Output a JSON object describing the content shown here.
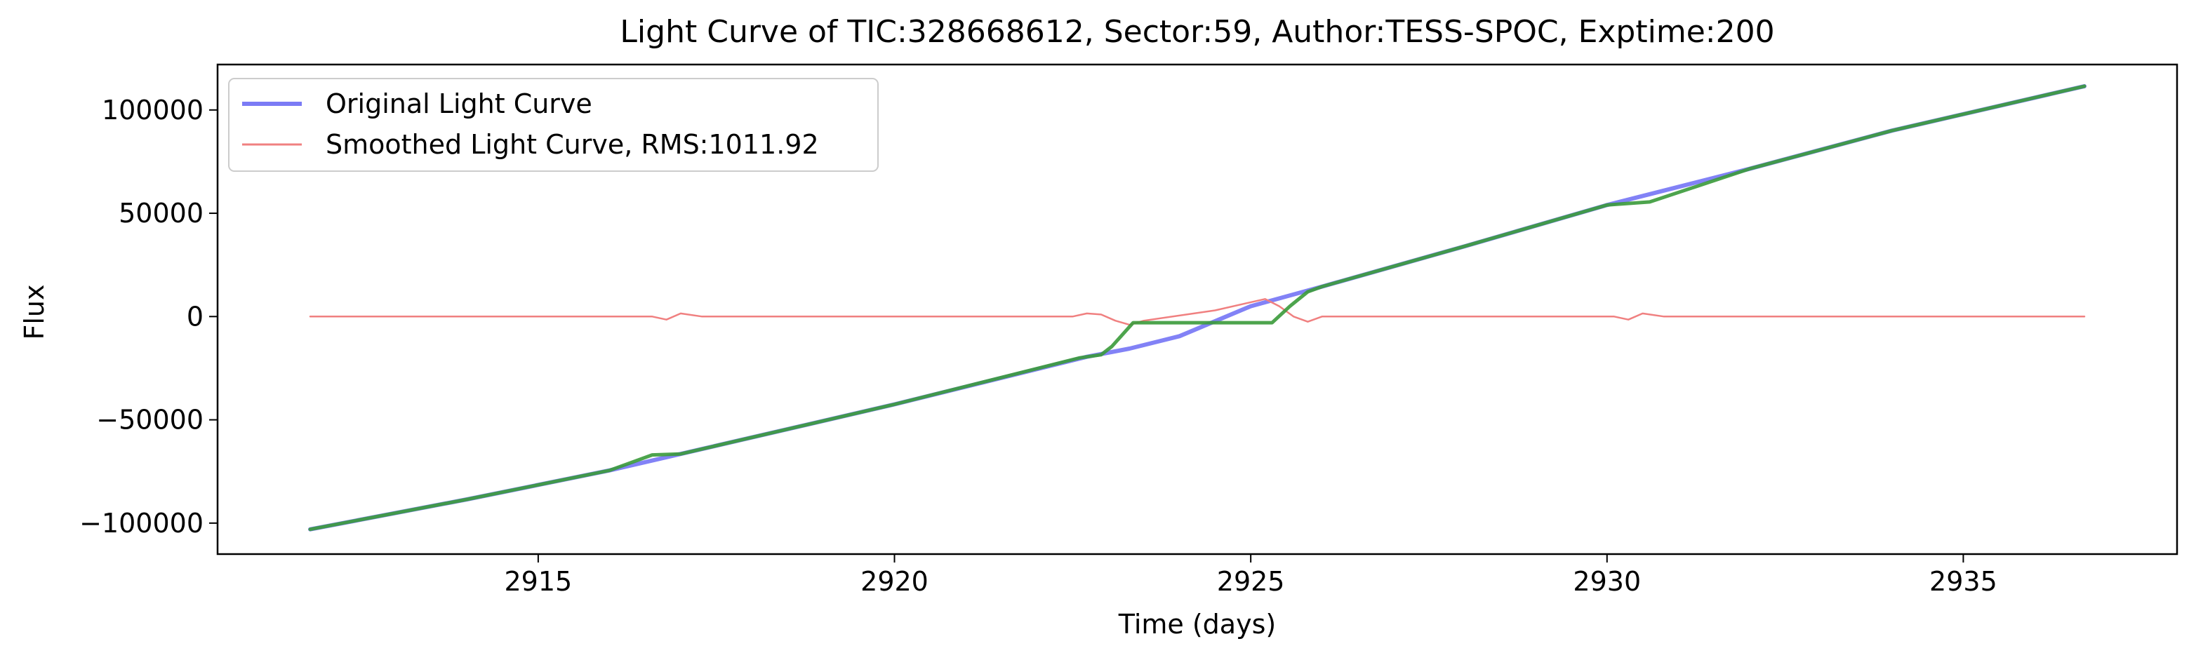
{
  "chart_data": {
    "type": "line",
    "title": "Light Curve of TIC:328668612, Sector:59, Author:TESS-SPOC, Exptime:200",
    "xlabel": "Time (days)",
    "ylabel": "Flux",
    "xlim": [
      2910.5,
      2938.0
    ],
    "ylim": [
      -115000,
      122000
    ],
    "xticks": [
      2915,
      2920,
      2925,
      2930,
      2935
    ],
    "yticks": [
      -100000,
      -50000,
      0,
      50000,
      100000
    ],
    "xtick_labels": [
      "2915",
      "2920",
      "2925",
      "2930",
      "2935"
    ],
    "ytick_labels": [
      "−100000",
      "−50000",
      "0",
      "50000",
      "100000"
    ],
    "grid": false,
    "legend_position": "upper-left",
    "series": [
      {
        "name": "Original Light Curve",
        "color": "#7b7bf5",
        "x": [
          2911.8,
          2914.0,
          2916.0,
          2917.0,
          2920.0,
          2922.7,
          2923.3,
          2924.0,
          2925.0,
          2926.0,
          2928.0,
          2930.0,
          2932.0,
          2934.0,
          2936.7
        ],
        "y": [
          -103000,
          -88500,
          -74500,
          -66500,
          -42500,
          -19500,
          -15500,
          -9500,
          5000,
          14500,
          34000,
          54000,
          71500,
          90000,
          111500
        ]
      },
      {
        "name": "Smoothed Light Curve, RMS:1011.92",
        "color": "#f08080",
        "x": [
          2911.8,
          2916.6,
          2916.8,
          2917.0,
          2917.3,
          2917.6,
          2922.5,
          2922.7,
          2922.9,
          2923.1,
          2923.3,
          2923.5,
          2924.5,
          2925.2,
          2925.4,
          2925.6,
          2925.8,
          2926.0,
          2930.1,
          2930.3,
          2930.5,
          2930.8,
          2931.2,
          2936.7
        ],
        "y": [
          0,
          0,
          -1500,
          1500,
          0,
          0,
          0,
          1500,
          1000,
          -2000,
          -4000,
          -2000,
          3000,
          8500,
          5000,
          0,
          -2500,
          0,
          0,
          -1500,
          1500,
          0,
          0,
          0
        ]
      },
      {
        "color": "#3a9a3a",
        "x": [
          2911.8,
          2914.0,
          2916.0,
          2916.6,
          2917.0,
          2920.0,
          2922.6,
          2922.9,
          2923.05,
          2923.35,
          2925.3,
          2925.55,
          2925.8,
          2926.0,
          2928.0,
          2930.0,
          2930.6,
          2932.0,
          2934.0,
          2936.7
        ],
        "y": [
          -103000,
          -88500,
          -74500,
          -67000,
          -66500,
          -42500,
          -20000,
          -18500,
          -14500,
          -3000,
          -3000,
          5000,
          12000,
          14500,
          34000,
          54000,
          55500,
          71500,
          90000,
          111500
        ]
      }
    ]
  }
}
